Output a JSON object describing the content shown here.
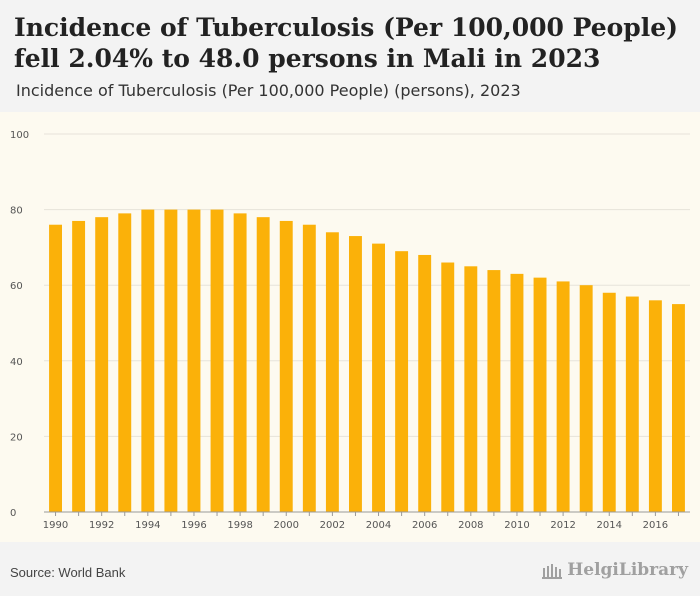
{
  "header": {
    "title": "Incidence of Tuberculosis (Per 100,000 People) fell 2.04% to 48.0 persons in Mali in 2023",
    "subtitle": "Incidence of Tuberculosis (Per 100,000 People) (persons), 2023"
  },
  "footer": {
    "source": "Source: World Bank",
    "logo_text": "HelgiLibrary"
  },
  "colors": {
    "bar": "#fbb109",
    "grid": "#e6e3da",
    "plot_bg": "#fdfaf0"
  },
  "chart_data": {
    "type": "bar",
    "title": "Incidence of Tuberculosis (Per 100,000 People) fell 2.04% to 48.0 persons in Mali in 2023",
    "subtitle": "Incidence of Tuberculosis (Per 100,000 People) (persons), 2023",
    "xlabel": "",
    "ylabel": "",
    "ylim": [
      0,
      100
    ],
    "yticks": [
      0,
      20,
      40,
      60,
      80,
      100
    ],
    "grid": true,
    "categories": [
      "1990",
      "1991",
      "1992",
      "1993",
      "1994",
      "1995",
      "1996",
      "1997",
      "1998",
      "1999",
      "2000",
      "2001",
      "2002",
      "2003",
      "2004",
      "2005",
      "2006",
      "2007",
      "2008",
      "2009",
      "2010",
      "2011",
      "2012",
      "2013",
      "2014",
      "2015",
      "2016",
      "2017"
    ],
    "xtick_labels": [
      "1990",
      "1992",
      "1994",
      "1996",
      "1998",
      "2000",
      "2002",
      "2004",
      "2006",
      "2008",
      "2010",
      "2012",
      "2014",
      "2016"
    ],
    "values": [
      76,
      77,
      78,
      79,
      80,
      80,
      80,
      80,
      79,
      78,
      77,
      76,
      74,
      73,
      71,
      69,
      68,
      66,
      65,
      64,
      63,
      62,
      61,
      60,
      58,
      57,
      56,
      55
    ]
  }
}
